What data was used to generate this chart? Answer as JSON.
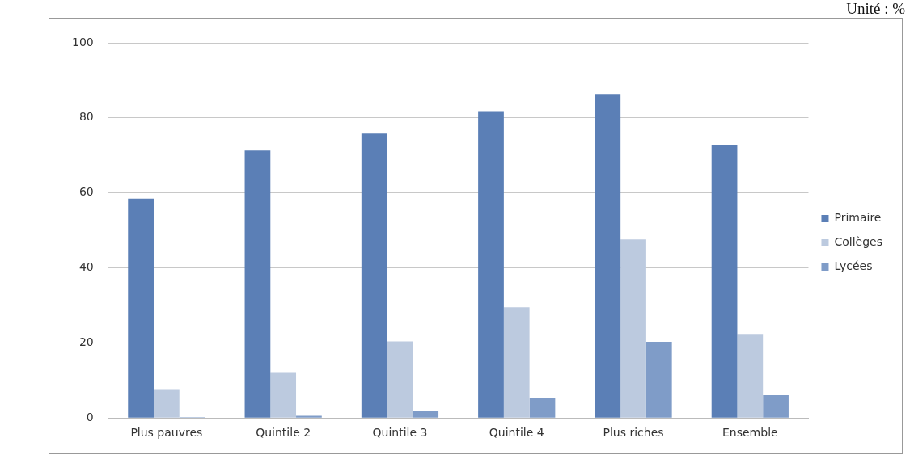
{
  "chart_data": {
    "type": "bar",
    "annotations": [
      "Unité : %"
    ],
    "categories": [
      "Plus pauvres",
      "Quintile 2",
      "Quintile 3",
      "Quintile 4",
      "Plus riches",
      "Ensemble"
    ],
    "series": [
      {
        "name": "Primaire",
        "color": "#5b7fb6",
        "values": [
          58.5,
          71.3,
          75.8,
          81.8,
          86.4,
          72.7
        ]
      },
      {
        "name": "Collèges",
        "color": "#bccadf",
        "values": [
          7.7,
          12.2,
          20.4,
          29.5,
          47.6,
          22.4
        ]
      },
      {
        "name": "Lycées",
        "color": "#7f9cc8",
        "values": [
          0.2,
          0.6,
          2,
          5.2,
          20.3,
          6.1
        ]
      }
    ],
    "ylim": [
      0,
      100
    ],
    "yticks": [
      0,
      20,
      40,
      60,
      80,
      100
    ],
    "grid": "y",
    "legend": "right"
  }
}
